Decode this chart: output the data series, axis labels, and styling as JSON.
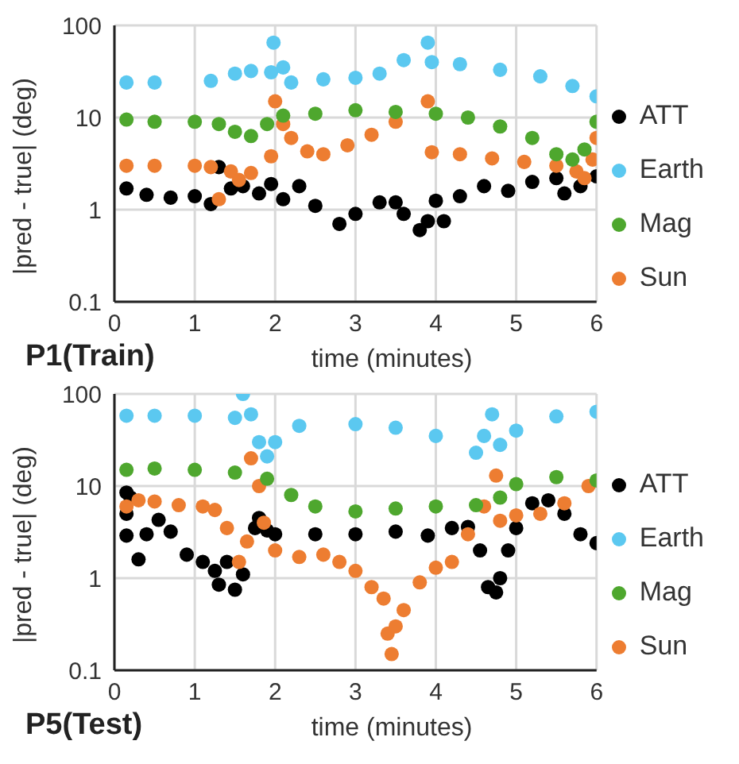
{
  "chart_data": [
    {
      "type": "scatter",
      "title": "P1(Train)",
      "xlabel": "time (minutes)",
      "ylabel": "|pred - true| (deg)",
      "xlim": [
        0,
        6
      ],
      "xticks": [
        0,
        1,
        2,
        3,
        4,
        5,
        6
      ],
      "ylim": [
        0.1,
        100
      ],
      "yticks": [
        0.1,
        1,
        10,
        100
      ],
      "log": "y",
      "grid": true,
      "legend": "right",
      "marker": "circle",
      "series": [
        {
          "name": "ATT",
          "color": "#000000",
          "x": [
            0.15,
            0.4,
            0.7,
            1.0,
            1.2,
            1.3,
            1.45,
            1.6,
            1.8,
            1.95,
            2.1,
            2.3,
            2.5,
            2.8,
            3.0,
            3.3,
            3.5,
            3.6,
            3.8,
            3.9,
            4.0,
            4.1,
            4.3,
            4.6,
            4.9,
            5.2,
            5.5,
            5.6,
            5.8,
            6.0
          ],
          "values": [
            1.7,
            1.45,
            1.35,
            1.4,
            1.15,
            2.9,
            1.7,
            1.8,
            1.5,
            1.9,
            1.3,
            1.8,
            1.1,
            0.7,
            0.9,
            1.2,
            1.2,
            0.9,
            0.6,
            0.75,
            1.25,
            0.75,
            1.4,
            1.8,
            1.6,
            2.0,
            2.2,
            1.5,
            1.8,
            2.3
          ]
        },
        {
          "name": "Sun",
          "color": "#ed7d31",
          "x": [
            0.15,
            0.5,
            1.0,
            1.2,
            1.3,
            1.45,
            1.55,
            1.7,
            1.95,
            2.0,
            2.1,
            2.2,
            2.4,
            2.6,
            2.9,
            3.2,
            3.5,
            3.9,
            3.95,
            4.3,
            4.7,
            5.1,
            5.5,
            5.75,
            5.85,
            5.95,
            6.0
          ],
          "values": [
            3.0,
            3.0,
            3.0,
            2.9,
            1.3,
            2.6,
            2.1,
            2.5,
            3.8,
            15,
            8.5,
            6,
            4.3,
            4.0,
            5,
            6.5,
            9,
            15,
            4.2,
            4.0,
            3.6,
            3.3,
            3.0,
            2.6,
            2.2,
            3.5,
            6
          ]
        },
        {
          "name": "Mag",
          "color": "#4ea72e",
          "x": [
            0.15,
            0.5,
            1.0,
            1.3,
            1.5,
            1.7,
            1.9,
            2.1,
            2.5,
            3.0,
            3.5,
            4.0,
            4.4,
            4.8,
            5.2,
            5.5,
            5.7,
            5.85,
            6.0
          ],
          "values": [
            9.5,
            9.0,
            9.0,
            8.5,
            7.0,
            6.3,
            8.5,
            10.5,
            11,
            12,
            11.5,
            11,
            10,
            8,
            6,
            4.0,
            3.5,
            4.5,
            9
          ]
        },
        {
          "name": "Earth",
          "color": "#5bc8f0",
          "x": [
            0.15,
            0.5,
            1.2,
            1.5,
            1.7,
            1.95,
            1.98,
            2.1,
            2.2,
            2.6,
            3.0,
            3.3,
            3.6,
            3.9,
            3.95,
            4.3,
            4.8,
            5.3,
            5.7,
            6.0
          ],
          "values": [
            24,
            24,
            25,
            30,
            32,
            31,
            65,
            35,
            24,
            26,
            27,
            30,
            42,
            65,
            40,
            38,
            33,
            28,
            22,
            17
          ]
        }
      ]
    },
    {
      "type": "scatter",
      "title": "P5(Test)",
      "xlabel": "time (minutes)",
      "ylabel": "|pred - true| (deg)",
      "xlim": [
        0,
        6
      ],
      "xticks": [
        0,
        1,
        2,
        3,
        4,
        5,
        6
      ],
      "ylim": [
        0.1,
        100
      ],
      "yticks": [
        0.1,
        1,
        10,
        100
      ],
      "log": "y",
      "grid": true,
      "legend": "right",
      "marker": "circle",
      "series": [
        {
          "name": "ATT",
          "color": "#000000",
          "x": [
            0.15,
            0.2,
            0.15,
            0.15,
            0.3,
            0.4,
            0.55,
            0.7,
            0.9,
            1.1,
            1.25,
            1.3,
            1.4,
            1.5,
            1.6,
            1.75,
            1.8,
            1.9,
            2.0,
            2.5,
            3.0,
            3.5,
            3.9,
            4.2,
            4.4,
            4.55,
            4.65,
            4.75,
            4.8,
            4.9,
            5.0,
            5.2,
            5.4,
            5.6,
            5.8,
            6.0
          ],
          "values": [
            8.5,
            7.5,
            5,
            2.9,
            1.6,
            3,
            4.3,
            3.2,
            1.8,
            1.5,
            1.2,
            0.85,
            1.5,
            0.75,
            1.1,
            3.5,
            4.5,
            3.3,
            3.0,
            3.0,
            3.0,
            3.2,
            2.9,
            3.5,
            3.6,
            2.0,
            0.8,
            0.7,
            1.0,
            2.0,
            3.5,
            6.5,
            7.0,
            5.0,
            3.0,
            2.4
          ]
        },
        {
          "name": "Sun",
          "color": "#ed7d31",
          "x": [
            0.15,
            0.3,
            0.5,
            0.8,
            1.1,
            1.25,
            1.4,
            1.55,
            1.65,
            1.7,
            1.8,
            1.86,
            2.0,
            2.3,
            2.6,
            2.8,
            3.0,
            3.2,
            3.35,
            3.4,
            3.45,
            3.5,
            3.6,
            3.8,
            4.0,
            4.2,
            4.4,
            4.6,
            4.75,
            4.8,
            5.0,
            5.3,
            5.6,
            5.9
          ],
          "values": [
            6.0,
            7.0,
            6.8,
            6.2,
            6.0,
            5.5,
            3.5,
            1.5,
            2.5,
            20,
            10,
            4.0,
            2.0,
            1.7,
            1.8,
            1.5,
            1.2,
            0.8,
            0.6,
            0.25,
            0.15,
            0.3,
            0.45,
            0.9,
            1.3,
            1.5,
            3,
            6,
            13,
            4.2,
            4.8,
            5.0,
            6.5,
            10
          ]
        },
        {
          "name": "Mag",
          "color": "#4ea72e",
          "x": [
            0.15,
            0.5,
            1.0,
            1.5,
            1.9,
            2.2,
            2.5,
            3.0,
            3.5,
            4.0,
            4.5,
            4.8,
            5.0,
            5.5,
            6.0
          ],
          "values": [
            15,
            15.5,
            15,
            14,
            12,
            8,
            6,
            5.3,
            5.7,
            6.0,
            6.2,
            7.5,
            10.5,
            12.5,
            11.5
          ]
        },
        {
          "name": "Earth",
          "color": "#5bc8f0",
          "x": [
            0.15,
            0.5,
            1.0,
            1.5,
            1.6,
            1.7,
            1.8,
            1.9,
            2.0,
            2.3,
            3.0,
            3.5,
            4.0,
            4.5,
            4.6,
            4.7,
            4.8,
            5.0,
            5.5,
            6.0
          ],
          "values": [
            58,
            58,
            58,
            55,
            100,
            60,
            30,
            21,
            30,
            45,
            47,
            43,
            35,
            23,
            35,
            60,
            28,
            40,
            57,
            64
          ]
        }
      ]
    }
  ]
}
